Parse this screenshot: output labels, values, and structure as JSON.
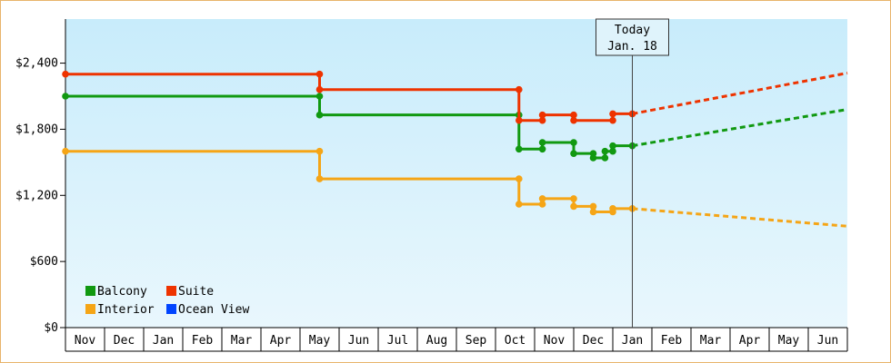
{
  "chart_data": {
    "type": "line",
    "title": "",
    "xlabel": "",
    "ylabel": "",
    "ylim": [
      0,
      2800
    ],
    "y_ticks": [
      0,
      600,
      1200,
      1800,
      2400
    ],
    "y_tick_labels": [
      "$0",
      "$600",
      "$1,200",
      "$1,800",
      "$2,400"
    ],
    "x_range": [
      0,
      20
    ],
    "x_categories": [
      "Nov",
      "Dec",
      "Jan",
      "Feb",
      "Mar",
      "Apr",
      "May",
      "Jun",
      "Jul",
      "Aug",
      "Sep",
      "Oct",
      "Nov",
      "Dec",
      "Jan",
      "Feb",
      "Mar",
      "Apr",
      "May",
      "Jun"
    ],
    "grid": false,
    "legend_position": "bottom-left",
    "today_marker": {
      "x": 14.5,
      "line1": "Today",
      "line2": "Jan. 18"
    },
    "series": [
      {
        "name": "Balcony",
        "color": "#119911",
        "step_points": [
          [
            0.0,
            2100
          ],
          [
            6.5,
            2100
          ],
          [
            6.5,
            1930
          ],
          [
            11.6,
            1930
          ],
          [
            11.6,
            1620
          ],
          [
            12.2,
            1620
          ],
          [
            12.2,
            1680
          ],
          [
            13.0,
            1680
          ],
          [
            13.0,
            1580
          ],
          [
            13.5,
            1580
          ],
          [
            13.5,
            1540
          ],
          [
            13.8,
            1540
          ],
          [
            13.8,
            1600
          ],
          [
            14.0,
            1600
          ],
          [
            14.0,
            1650
          ],
          [
            14.5,
            1650
          ]
        ],
        "forecast_points": [
          [
            14.5,
            1650
          ],
          [
            20.0,
            1980
          ]
        ]
      },
      {
        "name": "Suite",
        "color": "#ee3300",
        "step_points": [
          [
            0.0,
            2300
          ],
          [
            6.5,
            2300
          ],
          [
            6.5,
            2160
          ],
          [
            11.6,
            2160
          ],
          [
            11.6,
            1880
          ],
          [
            12.2,
            1880
          ],
          [
            12.2,
            1930
          ],
          [
            13.0,
            1930
          ],
          [
            13.0,
            1880
          ],
          [
            14.0,
            1880
          ],
          [
            14.0,
            1940
          ],
          [
            14.5,
            1940
          ]
        ],
        "forecast_points": [
          [
            14.5,
            1940
          ],
          [
            20.0,
            2310
          ]
        ]
      },
      {
        "name": "Interior",
        "color": "#f5a516",
        "step_points": [
          [
            0.0,
            1600
          ],
          [
            6.5,
            1600
          ],
          [
            6.5,
            1350
          ],
          [
            11.6,
            1350
          ],
          [
            11.6,
            1120
          ],
          [
            12.2,
            1120
          ],
          [
            12.2,
            1170
          ],
          [
            13.0,
            1170
          ],
          [
            13.0,
            1100
          ],
          [
            13.5,
            1100
          ],
          [
            13.5,
            1050
          ],
          [
            14.0,
            1050
          ],
          [
            14.0,
            1080
          ],
          [
            14.5,
            1080
          ]
        ],
        "forecast_points": [
          [
            14.5,
            1080
          ],
          [
            20.0,
            920
          ]
        ]
      },
      {
        "name": "Ocean View",
        "color": "#0044ff",
        "step_points": [],
        "forecast_points": []
      }
    ]
  }
}
